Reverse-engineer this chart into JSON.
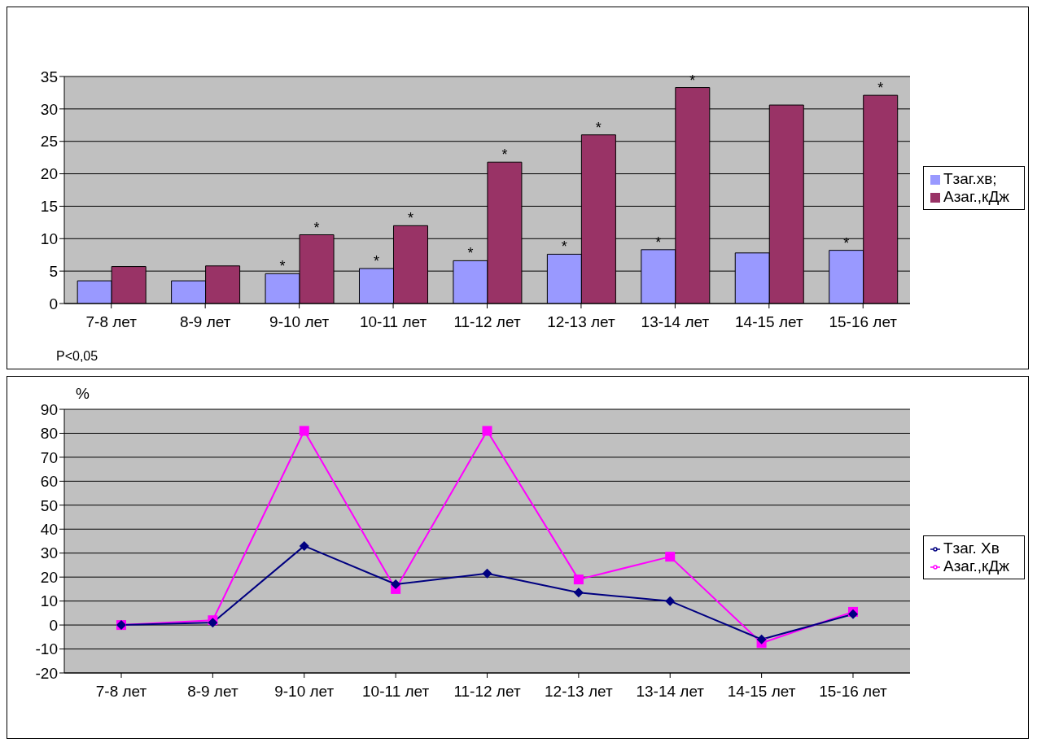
{
  "chart_data": [
    {
      "type": "bar",
      "categories": [
        "7-8 лет",
        "8-9 лет",
        "9-10 лет",
        "10-11 лет",
        "11-12 лет",
        "12-13 лет",
        "13-14 лет",
        "14-15 лет",
        "15-16 лет"
      ],
      "series": [
        {
          "name": "Тзаг.хв;",
          "color": "#9999ff",
          "values": [
            3.5,
            3.5,
            4.6,
            5.4,
            6.6,
            7.6,
            8.3,
            7.8,
            8.2
          ],
          "value_labels": [
            null,
            null,
            "*",
            "*",
            "*",
            "*",
            "*",
            null,
            "*"
          ]
        },
        {
          "name": "Азаг.,кДж",
          "color": "#993366",
          "values": [
            5.7,
            5.8,
            10.6,
            12,
            21.8,
            26,
            33.3,
            30.6,
            32.1
          ],
          "value_labels": [
            null,
            null,
            "*",
            "*",
            "*",
            "*",
            "*",
            null,
            "*"
          ]
        }
      ],
      "ylim": [
        0,
        35
      ],
      "yticks": [
        0,
        5,
        10,
        15,
        20,
        25,
        30,
        35
      ],
      "grid": "y",
      "legend": "right",
      "annotations": [
        "P<0,05"
      ]
    },
    {
      "type": "line",
      "ylabel": "%",
      "categories": [
        "7-8 лет",
        "8-9 лет",
        "9-10 лет",
        "10-11 лет",
        "11-12 лет",
        "12-13 лет",
        "13-14 лет",
        "14-15 лет",
        "15-16 лет"
      ],
      "series": [
        {
          "name": "Тзаг. Хв",
          "color": "#000080",
          "marker": "diamond",
          "values": [
            0,
            1,
            33,
            17,
            21.5,
            13.5,
            10,
            -6,
            4.5
          ]
        },
        {
          "name": "Азаг.,кДж",
          "color": "#ff00ff",
          "marker": "square",
          "values": [
            0,
            2,
            81,
            15,
            81,
            19,
            28.5,
            -7.5,
            5.5
          ]
        }
      ],
      "ylim": [
        -20,
        90
      ],
      "yticks": [
        -20,
        -10,
        0,
        10,
        20,
        30,
        40,
        50,
        60,
        70,
        80,
        90
      ],
      "grid": "y",
      "legend": "right"
    }
  ]
}
